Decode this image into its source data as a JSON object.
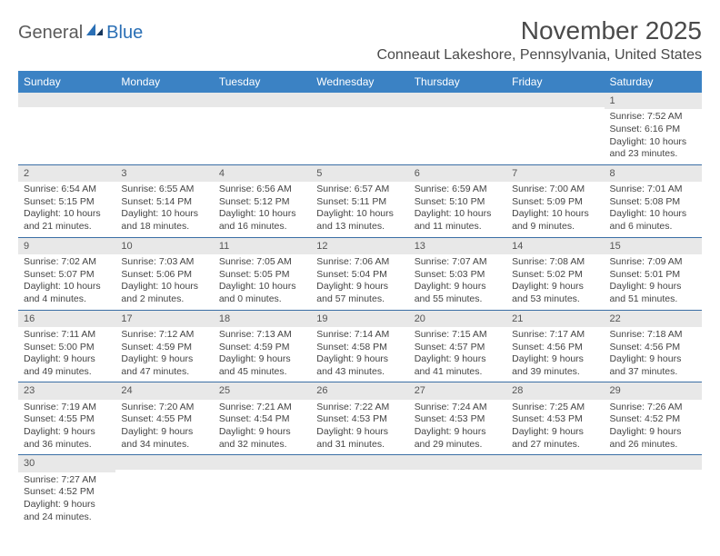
{
  "brand": {
    "part1": "General",
    "part2": "Blue"
  },
  "title": "November 2025",
  "location": "Conneaut Lakeshore, Pennsylvania, United States",
  "colors": {
    "header_bg": "#3b82c4",
    "header_text": "#ffffff",
    "daynum_bg": "#e8e8e8",
    "row_border": "#3b6fa5",
    "text": "#444444"
  },
  "weekdays": [
    "Sunday",
    "Monday",
    "Tuesday",
    "Wednesday",
    "Thursday",
    "Friday",
    "Saturday"
  ],
  "weeks": [
    [
      {
        "day": "",
        "sunrise": "",
        "sunset": "",
        "daylight": ""
      },
      {
        "day": "",
        "sunrise": "",
        "sunset": "",
        "daylight": ""
      },
      {
        "day": "",
        "sunrise": "",
        "sunset": "",
        "daylight": ""
      },
      {
        "day": "",
        "sunrise": "",
        "sunset": "",
        "daylight": ""
      },
      {
        "day": "",
        "sunrise": "",
        "sunset": "",
        "daylight": ""
      },
      {
        "day": "",
        "sunrise": "",
        "sunset": "",
        "daylight": ""
      },
      {
        "day": "1",
        "sunrise": "Sunrise: 7:52 AM",
        "sunset": "Sunset: 6:16 PM",
        "daylight": "Daylight: 10 hours and 23 minutes."
      }
    ],
    [
      {
        "day": "2",
        "sunrise": "Sunrise: 6:54 AM",
        "sunset": "Sunset: 5:15 PM",
        "daylight": "Daylight: 10 hours and 21 minutes."
      },
      {
        "day": "3",
        "sunrise": "Sunrise: 6:55 AM",
        "sunset": "Sunset: 5:14 PM",
        "daylight": "Daylight: 10 hours and 18 minutes."
      },
      {
        "day": "4",
        "sunrise": "Sunrise: 6:56 AM",
        "sunset": "Sunset: 5:12 PM",
        "daylight": "Daylight: 10 hours and 16 minutes."
      },
      {
        "day": "5",
        "sunrise": "Sunrise: 6:57 AM",
        "sunset": "Sunset: 5:11 PM",
        "daylight": "Daylight: 10 hours and 13 minutes."
      },
      {
        "day": "6",
        "sunrise": "Sunrise: 6:59 AM",
        "sunset": "Sunset: 5:10 PM",
        "daylight": "Daylight: 10 hours and 11 minutes."
      },
      {
        "day": "7",
        "sunrise": "Sunrise: 7:00 AM",
        "sunset": "Sunset: 5:09 PM",
        "daylight": "Daylight: 10 hours and 9 minutes."
      },
      {
        "day": "8",
        "sunrise": "Sunrise: 7:01 AM",
        "sunset": "Sunset: 5:08 PM",
        "daylight": "Daylight: 10 hours and 6 minutes."
      }
    ],
    [
      {
        "day": "9",
        "sunrise": "Sunrise: 7:02 AM",
        "sunset": "Sunset: 5:07 PM",
        "daylight": "Daylight: 10 hours and 4 minutes."
      },
      {
        "day": "10",
        "sunrise": "Sunrise: 7:03 AM",
        "sunset": "Sunset: 5:06 PM",
        "daylight": "Daylight: 10 hours and 2 minutes."
      },
      {
        "day": "11",
        "sunrise": "Sunrise: 7:05 AM",
        "sunset": "Sunset: 5:05 PM",
        "daylight": "Daylight: 10 hours and 0 minutes."
      },
      {
        "day": "12",
        "sunrise": "Sunrise: 7:06 AM",
        "sunset": "Sunset: 5:04 PM",
        "daylight": "Daylight: 9 hours and 57 minutes."
      },
      {
        "day": "13",
        "sunrise": "Sunrise: 7:07 AM",
        "sunset": "Sunset: 5:03 PM",
        "daylight": "Daylight: 9 hours and 55 minutes."
      },
      {
        "day": "14",
        "sunrise": "Sunrise: 7:08 AM",
        "sunset": "Sunset: 5:02 PM",
        "daylight": "Daylight: 9 hours and 53 minutes."
      },
      {
        "day": "15",
        "sunrise": "Sunrise: 7:09 AM",
        "sunset": "Sunset: 5:01 PM",
        "daylight": "Daylight: 9 hours and 51 minutes."
      }
    ],
    [
      {
        "day": "16",
        "sunrise": "Sunrise: 7:11 AM",
        "sunset": "Sunset: 5:00 PM",
        "daylight": "Daylight: 9 hours and 49 minutes."
      },
      {
        "day": "17",
        "sunrise": "Sunrise: 7:12 AM",
        "sunset": "Sunset: 4:59 PM",
        "daylight": "Daylight: 9 hours and 47 minutes."
      },
      {
        "day": "18",
        "sunrise": "Sunrise: 7:13 AM",
        "sunset": "Sunset: 4:59 PM",
        "daylight": "Daylight: 9 hours and 45 minutes."
      },
      {
        "day": "19",
        "sunrise": "Sunrise: 7:14 AM",
        "sunset": "Sunset: 4:58 PM",
        "daylight": "Daylight: 9 hours and 43 minutes."
      },
      {
        "day": "20",
        "sunrise": "Sunrise: 7:15 AM",
        "sunset": "Sunset: 4:57 PM",
        "daylight": "Daylight: 9 hours and 41 minutes."
      },
      {
        "day": "21",
        "sunrise": "Sunrise: 7:17 AM",
        "sunset": "Sunset: 4:56 PM",
        "daylight": "Daylight: 9 hours and 39 minutes."
      },
      {
        "day": "22",
        "sunrise": "Sunrise: 7:18 AM",
        "sunset": "Sunset: 4:56 PM",
        "daylight": "Daylight: 9 hours and 37 minutes."
      }
    ],
    [
      {
        "day": "23",
        "sunrise": "Sunrise: 7:19 AM",
        "sunset": "Sunset: 4:55 PM",
        "daylight": "Daylight: 9 hours and 36 minutes."
      },
      {
        "day": "24",
        "sunrise": "Sunrise: 7:20 AM",
        "sunset": "Sunset: 4:55 PM",
        "daylight": "Daylight: 9 hours and 34 minutes."
      },
      {
        "day": "25",
        "sunrise": "Sunrise: 7:21 AM",
        "sunset": "Sunset: 4:54 PM",
        "daylight": "Daylight: 9 hours and 32 minutes."
      },
      {
        "day": "26",
        "sunrise": "Sunrise: 7:22 AM",
        "sunset": "Sunset: 4:53 PM",
        "daylight": "Daylight: 9 hours and 31 minutes."
      },
      {
        "day": "27",
        "sunrise": "Sunrise: 7:24 AM",
        "sunset": "Sunset: 4:53 PM",
        "daylight": "Daylight: 9 hours and 29 minutes."
      },
      {
        "day": "28",
        "sunrise": "Sunrise: 7:25 AM",
        "sunset": "Sunset: 4:53 PM",
        "daylight": "Daylight: 9 hours and 27 minutes."
      },
      {
        "day": "29",
        "sunrise": "Sunrise: 7:26 AM",
        "sunset": "Sunset: 4:52 PM",
        "daylight": "Daylight: 9 hours and 26 minutes."
      }
    ],
    [
      {
        "day": "30",
        "sunrise": "Sunrise: 7:27 AM",
        "sunset": "Sunset: 4:52 PM",
        "daylight": "Daylight: 9 hours and 24 minutes."
      },
      {
        "day": "",
        "sunrise": "",
        "sunset": "",
        "daylight": ""
      },
      {
        "day": "",
        "sunrise": "",
        "sunset": "",
        "daylight": ""
      },
      {
        "day": "",
        "sunrise": "",
        "sunset": "",
        "daylight": ""
      },
      {
        "day": "",
        "sunrise": "",
        "sunset": "",
        "daylight": ""
      },
      {
        "day": "",
        "sunrise": "",
        "sunset": "",
        "daylight": ""
      },
      {
        "day": "",
        "sunrise": "",
        "sunset": "",
        "daylight": ""
      }
    ]
  ]
}
